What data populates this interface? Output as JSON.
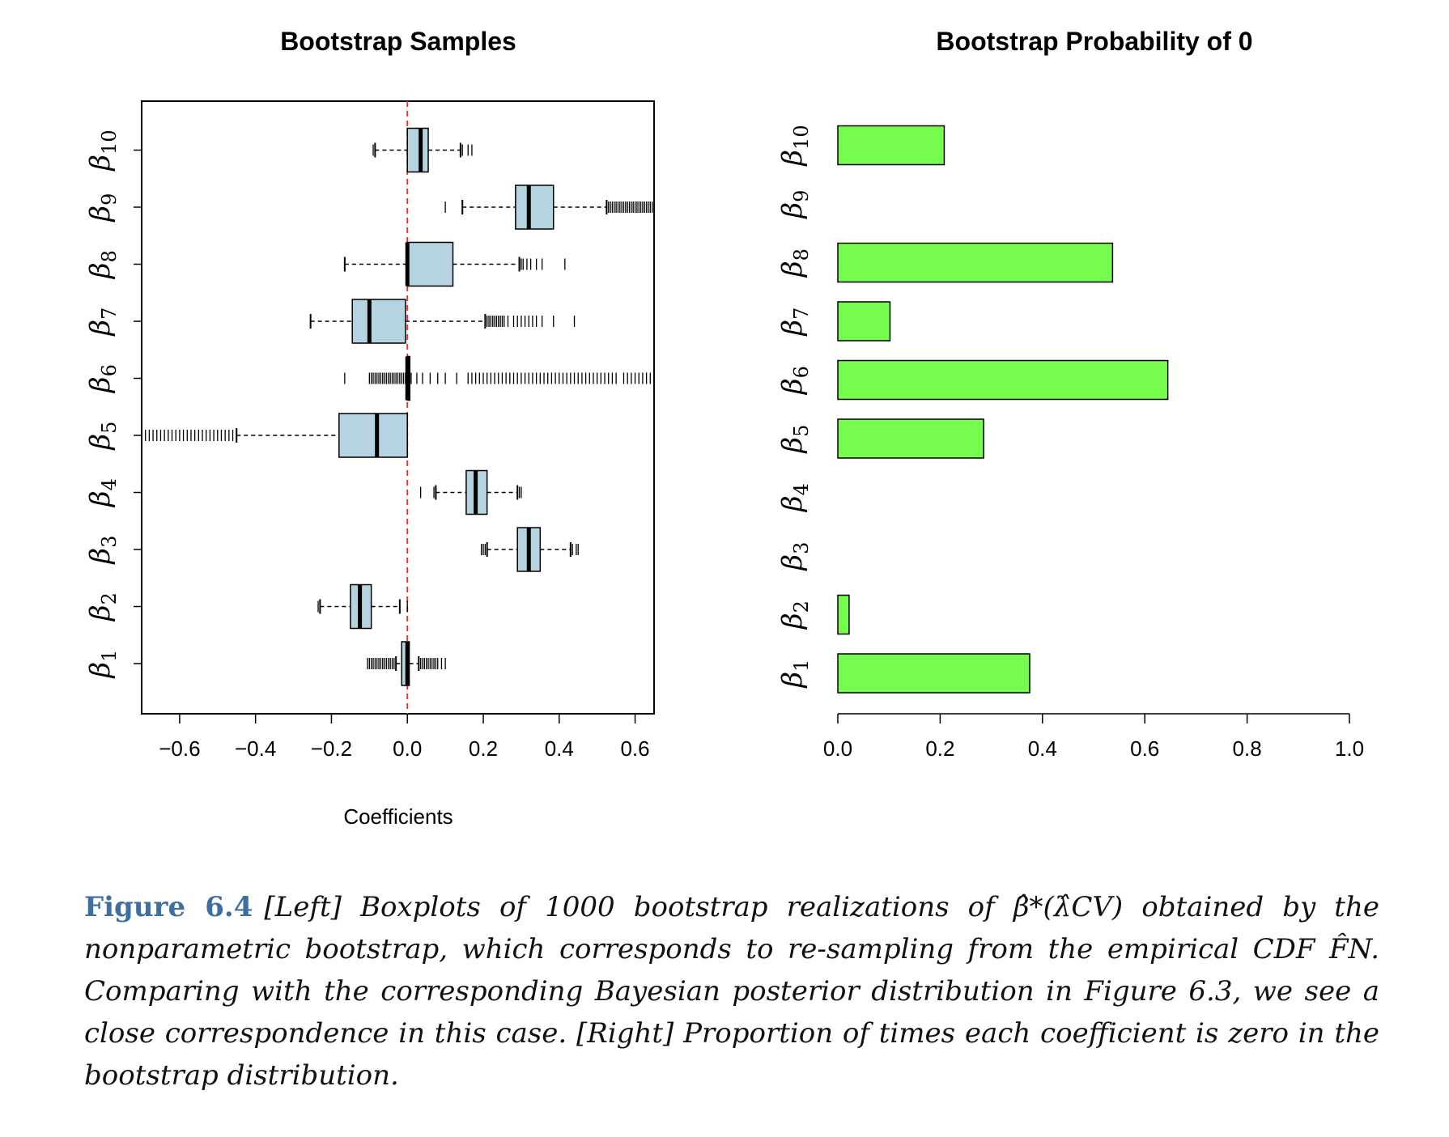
{
  "figure_label": "Figure 6.4",
  "caption_text": "[Left] Boxplots of 1000 bootstrap realizations of β̂*(λ̂CV) obtained by the nonparametric bootstrap, which corresponds to re-sampling from the empirical CDF F̂N. Comparing with the corresponding Bayesian posterior distribution in Figure 6.3, we see a close correspondence in this case. [Right] Proportion of times each coefficient is zero in the bootstrap distribution.",
  "chart_data": [
    {
      "type": "boxplot",
      "title": "Bootstrap Samples",
      "xlabel": "Coefficients",
      "ylabel": "",
      "xlim": [
        -0.7,
        0.65
      ],
      "xticks": [
        -0.6,
        -0.4,
        -0.2,
        0.0,
        0.2,
        0.4,
        0.6
      ],
      "reference_line": {
        "x": 0.0,
        "color": "#e53935",
        "style": "dashed"
      },
      "box_color": "#b5d3e0",
      "categories": [
        "β1",
        "β2",
        "β3",
        "β4",
        "β5",
        "β6",
        "β7",
        "β8",
        "β9",
        "β10"
      ],
      "boxes": [
        {
          "name": "β1",
          "whisker_low": -0.03,
          "q1": -0.015,
          "median": 0.0,
          "q3": 0.005,
          "whisker_high": 0.03,
          "outliers": [
            -0.105,
            -0.1,
            -0.095,
            -0.09,
            -0.085,
            -0.08,
            -0.075,
            -0.07,
            -0.065,
            -0.06,
            -0.055,
            -0.05,
            -0.045,
            -0.04,
            -0.035,
            0.035,
            0.04,
            0.045,
            0.05,
            0.055,
            0.06,
            0.065,
            0.07,
            0.075,
            0.08,
            0.09,
            0.1
          ]
        },
        {
          "name": "β2",
          "whisker_low": -0.23,
          "q1": -0.15,
          "median": -0.125,
          "q3": -0.095,
          "whisker_high": -0.02,
          "outliers": [
            -0.235,
            -0.0
          ]
        },
        {
          "name": "β3",
          "whisker_low": 0.21,
          "q1": 0.29,
          "median": 0.32,
          "q3": 0.35,
          "whisker_high": 0.43,
          "outliers": [
            0.195,
            0.2,
            0.205,
            0.435,
            0.445,
            0.45
          ]
        },
        {
          "name": "β4",
          "whisker_low": 0.075,
          "q1": 0.155,
          "median": 0.18,
          "q3": 0.21,
          "whisker_high": 0.29,
          "outliers": [
            0.035,
            0.07,
            0.295,
            0.3
          ]
        },
        {
          "name": "β5",
          "whisker_low": -0.45,
          "q1": -0.18,
          "median": -0.08,
          "q3": 0.0,
          "whisker_high": 0.0,
          "outliers": [
            -0.69,
            -0.68,
            -0.67,
            -0.66,
            -0.65,
            -0.64,
            -0.63,
            -0.62,
            -0.61,
            -0.6,
            -0.59,
            -0.58,
            -0.57,
            -0.56,
            -0.55,
            -0.54,
            -0.53,
            -0.52,
            -0.51,
            -0.5,
            -0.49,
            -0.48,
            -0.47,
            -0.46
          ]
        },
        {
          "name": "β6",
          "whisker_low": 0.0,
          "q1": 0.0,
          "median": 0.0,
          "q3": 0.0,
          "whisker_high": 0.0,
          "outliers": [
            -0.165,
            -0.1,
            -0.095,
            -0.09,
            -0.085,
            -0.08,
            -0.075,
            -0.07,
            -0.065,
            -0.06,
            -0.055,
            -0.05,
            -0.045,
            -0.04,
            -0.035,
            -0.03,
            -0.025,
            -0.02,
            -0.015,
            -0.01,
            -0.005,
            0.01,
            0.025,
            0.04,
            0.06,
            0.08,
            0.1,
            0.13,
            0.16,
            0.17,
            0.18,
            0.19,
            0.2,
            0.21,
            0.22,
            0.23,
            0.24,
            0.25,
            0.26,
            0.27,
            0.28,
            0.29,
            0.3,
            0.31,
            0.32,
            0.33,
            0.34,
            0.35,
            0.36,
            0.37,
            0.38,
            0.39,
            0.4,
            0.41,
            0.42,
            0.43,
            0.44,
            0.45,
            0.46,
            0.47,
            0.48,
            0.49,
            0.5,
            0.51,
            0.52,
            0.53,
            0.54,
            0.55,
            0.57,
            0.58,
            0.59,
            0.6,
            0.61,
            0.62,
            0.63,
            0.64
          ]
        },
        {
          "name": "β7",
          "whisker_low": -0.255,
          "q1": -0.145,
          "median": -0.1,
          "q3": -0.005,
          "whisker_high": 0.205,
          "outliers": [
            0.21,
            0.215,
            0.22,
            0.225,
            0.23,
            0.235,
            0.24,
            0.245,
            0.25,
            0.255,
            0.265,
            0.28,
            0.29,
            0.3,
            0.31,
            0.32,
            0.33,
            0.34,
            0.355,
            0.385,
            0.44
          ]
        },
        {
          "name": "β8",
          "whisker_low": -0.165,
          "q1": 0.0,
          "median": 0.0,
          "q3": 0.12,
          "whisker_high": 0.295,
          "outliers": [
            0.3,
            0.305,
            0.315,
            0.325,
            0.34,
            0.355,
            0.415
          ]
        },
        {
          "name": "β9",
          "whisker_low": 0.145,
          "q1": 0.285,
          "median": 0.32,
          "q3": 0.385,
          "whisker_high": 0.525,
          "outliers": [
            0.1,
            0.53,
            0.535,
            0.54,
            0.545,
            0.55,
            0.555,
            0.56,
            0.565,
            0.57,
            0.575,
            0.58,
            0.585,
            0.59,
            0.595,
            0.6,
            0.605,
            0.61,
            0.615,
            0.62,
            0.625,
            0.63,
            0.635,
            0.64,
            0.645
          ]
        },
        {
          "name": "β10",
          "whisker_low": -0.085,
          "q1": 0.0,
          "median": 0.035,
          "q3": 0.055,
          "whisker_high": 0.14,
          "outliers": [
            -0.09,
            0.145,
            0.16,
            0.17
          ]
        }
      ]
    },
    {
      "type": "bar",
      "orientation": "horizontal",
      "title": "Bootstrap Probability of 0",
      "xlabel": "",
      "ylabel": "",
      "xlim": [
        0.0,
        1.0
      ],
      "xticks": [
        0.0,
        0.2,
        0.4,
        0.6,
        0.8,
        1.0
      ],
      "xtick_labels": [
        "0.0",
        "0.2",
        "0.4",
        "0.6",
        "0.8",
        "1.0"
      ],
      "bar_color": "#76fb4f",
      "categories": [
        "β1",
        "β2",
        "β3",
        "β4",
        "β5",
        "β6",
        "β7",
        "β8",
        "β9",
        "β10"
      ],
      "values": [
        0.375,
        0.022,
        0.0,
        0.0,
        0.285,
        0.645,
        0.102,
        0.537,
        0.0,
        0.208
      ]
    }
  ],
  "tick_text": {
    "left": [
      "−0.6",
      "−0.4",
      "−0.2",
      "0.0",
      "0.2",
      "0.4",
      "0.6"
    ]
  },
  "beta_labels": [
    {
      "base": "β",
      "sub": "1"
    },
    {
      "base": "β",
      "sub": "2"
    },
    {
      "base": "β",
      "sub": "3"
    },
    {
      "base": "β",
      "sub": "4"
    },
    {
      "base": "β",
      "sub": "5"
    },
    {
      "base": "β",
      "sub": "6"
    },
    {
      "base": "β",
      "sub": "7"
    },
    {
      "base": "β",
      "sub": "8"
    },
    {
      "base": "β",
      "sub": "9"
    },
    {
      "base": "β",
      "sub": "10"
    }
  ]
}
